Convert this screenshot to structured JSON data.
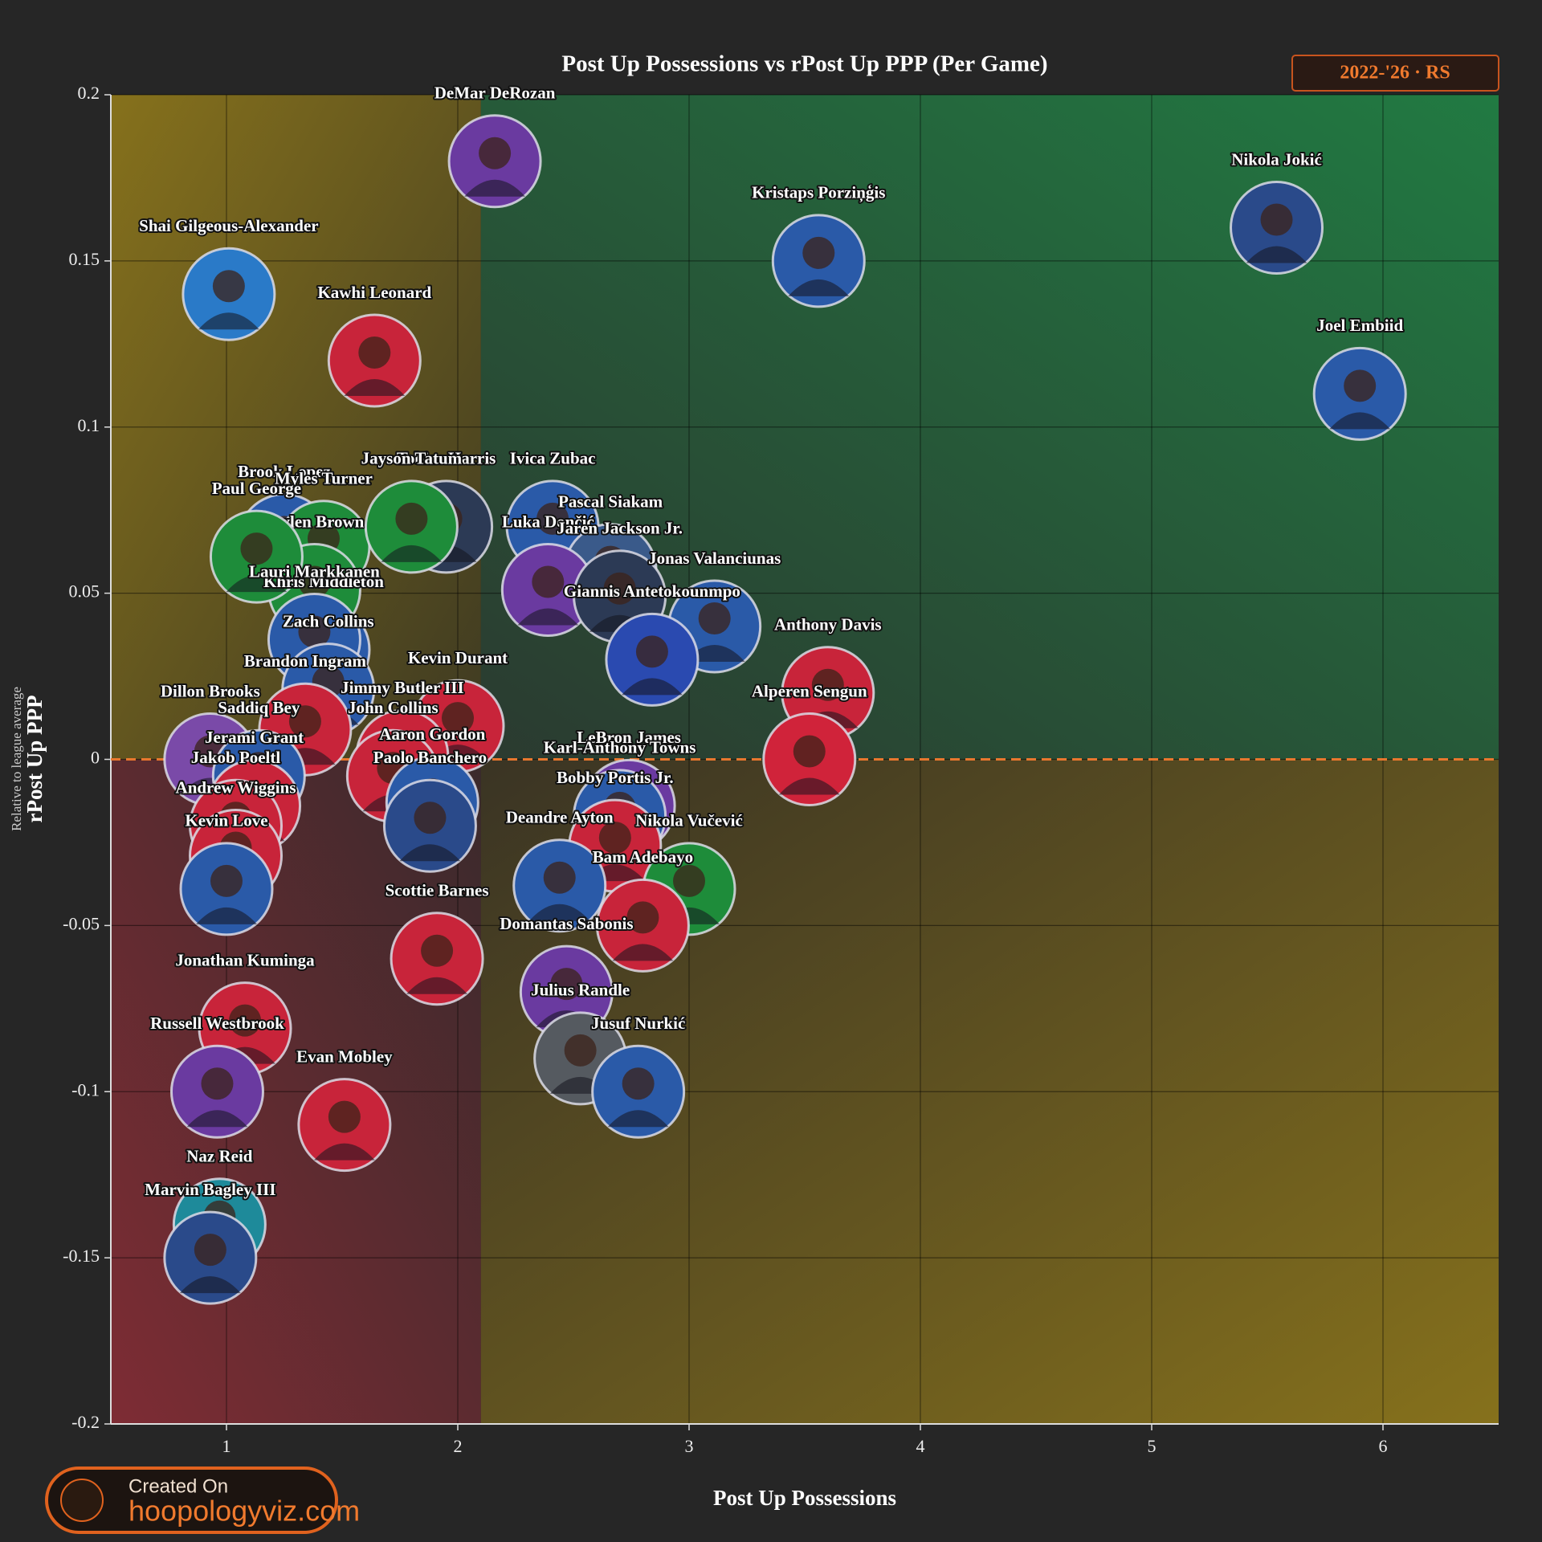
{
  "chart_data": {
    "type": "scatter",
    "title": "Post Up Possessions vs rPost Up PPP (Per Game)",
    "badge": "2022-'26 · RS",
    "x_label": "Post Up Possessions",
    "y_label": "rPost Up PPP",
    "y_sublabel": "Relative to league average",
    "footer_small": "Created On",
    "footer_big": "hoopologyviz.com",
    "xlim": [
      0.5,
      6.5
    ],
    "ylim": [
      -0.2,
      0.2
    ],
    "xticks": [
      1,
      2,
      3,
      4,
      5,
      6
    ],
    "yticks": [
      0.2,
      0.15,
      0.1,
      0.05,
      0,
      -0.05,
      -0.1,
      -0.15,
      -0.2
    ],
    "grid": true,
    "x_reference": 2.1,
    "y_reference": 0,
    "reference_color": "#e8772e",
    "points": [
      {
        "label": "Brook Lopez",
        "x": 1.25,
        "y": 0.066,
        "color": "#2a5aa8"
      },
      {
        "label": "Tobias Harris",
        "x": 1.95,
        "y": 0.07,
        "color": "#2c3a55"
      },
      {
        "label": "Myles Turner",
        "x": 1.42,
        "y": 0.064,
        "color": "#1e8c3a"
      },
      {
        "label": "Jaylen Brown",
        "x": 1.38,
        "y": 0.051,
        "color": "#1e8c3a"
      },
      {
        "label": "Paul George",
        "x": 1.13,
        "y": 0.061,
        "color": "#1e8c3a"
      },
      {
        "label": "Jayson Tatum",
        "x": 1.8,
        "y": 0.07,
        "color": "#1e8c3a"
      },
      {
        "label": "Ivica Zubac",
        "x": 2.41,
        "y": 0.07,
        "color": "#2a5aa8"
      },
      {
        "label": "Pascal Siakam",
        "x": 2.66,
        "y": 0.057,
        "color": "#3a5a8a"
      },
      {
        "label": "Luka Dončić",
        "x": 2.39,
        "y": 0.051,
        "color": "#6a3aa0"
      },
      {
        "label": "Jaren Jackson Jr.",
        "x": 2.7,
        "y": 0.049,
        "color": "#2c3a55"
      },
      {
        "label": "Jonas Valanciunas",
        "x": 3.11,
        "y": 0.04,
        "color": "#2a5aa8"
      },
      {
        "label": "Giannis Antetokounmpo",
        "x": 2.84,
        "y": 0.03,
        "color": "#2a4ab0"
      },
      {
        "label": "Khris Middleton",
        "x": 1.42,
        "y": 0.033,
        "color": "#2a5aa8"
      },
      {
        "label": "Lauri Markkanen",
        "x": 1.38,
        "y": 0.036,
        "color": "#2a5aa8"
      },
      {
        "label": "Zach Collins",
        "x": 1.44,
        "y": 0.021,
        "color": "#2a5aa8"
      },
      {
        "label": "Brandon Ingram",
        "x": 1.34,
        "y": 0.009,
        "color": "#c8243a"
      },
      {
        "label": "Kevin Durant",
        "x": 2.0,
        "y": 0.01,
        "color": "#c8243a"
      },
      {
        "label": "Anthony Davis",
        "x": 3.6,
        "y": 0.02,
        "color": "#c8243a"
      },
      {
        "label": "Alperen Sengun",
        "x": 3.52,
        "y": 0.0,
        "color": "#d0233a"
      },
      {
        "label": "Dillon Brooks",
        "x": 0.93,
        "y": 0.0,
        "color": "#7a4aa8"
      },
      {
        "label": "Jimmy Butler III",
        "x": 1.76,
        "y": 0.001,
        "color": "#c8243a"
      },
      {
        "label": "Saddiq Bey",
        "x": 1.14,
        "y": -0.005,
        "color": "#2a5aa8"
      },
      {
        "label": "John Collins",
        "x": 1.72,
        "y": -0.005,
        "color": "#c8243a"
      },
      {
        "label": "Jerami Grant",
        "x": 1.12,
        "y": -0.014,
        "color": "#c8243a"
      },
      {
        "label": "Aaron Gordon",
        "x": 1.89,
        "y": -0.013,
        "color": "#2a5aa8"
      },
      {
        "label": "LeBron James",
        "x": 2.74,
        "y": -0.014,
        "color": "#6a3aa0"
      },
      {
        "label": "Jakob Poeltl",
        "x": 1.04,
        "y": -0.02,
        "color": "#c8243a"
      },
      {
        "label": "Karl-Anthony Towns",
        "x": 2.7,
        "y": -0.017,
        "color": "#2a5aa8"
      },
      {
        "label": "Andrew Wiggins",
        "x": 1.04,
        "y": -0.029,
        "color": "#c8243a"
      },
      {
        "label": "Paolo Banchero",
        "x": 1.88,
        "y": -0.02,
        "color": "#2a4a8a"
      },
      {
        "label": "Bobby Portis Jr.",
        "x": 2.68,
        "y": -0.026,
        "color": "#c8243a"
      },
      {
        "label": "Scottie Barnes",
        "x": 1.91,
        "y": -0.06,
        "color": "#c8243a"
      },
      {
        "label": "Nikola Vučević",
        "x": 3.0,
        "y": -0.039,
        "color": "#1e8c3a"
      },
      {
        "label": "Deandre Ayton",
        "x": 2.44,
        "y": -0.038,
        "color": "#2a5aa8"
      },
      {
        "label": "Kevin Love",
        "x": 1.0,
        "y": -0.039,
        "color": "#2a5aa8"
      },
      {
        "label": "Bam Adebayo",
        "x": 2.8,
        "y": -0.05,
        "color": "#c8243a"
      },
      {
        "label": "Domantas Sabonis",
        "x": 2.47,
        "y": -0.07,
        "color": "#6a3aa0"
      },
      {
        "label": "Jonathan Kuminga",
        "x": 1.08,
        "y": -0.081,
        "color": "#c8243a"
      },
      {
        "label": "Julius Randle",
        "x": 2.53,
        "y": -0.09,
        "color": "#555a60"
      },
      {
        "label": "Russell Westbrook",
        "x": 0.96,
        "y": -0.1,
        "color": "#6a3aa0"
      },
      {
        "label": "Jusuf Nurkić",
        "x": 2.78,
        "y": -0.1,
        "color": "#2a5aa8"
      },
      {
        "label": "Evan Mobley",
        "x": 1.51,
        "y": -0.11,
        "color": "#c8243a"
      },
      {
        "label": "Naz Reid",
        "x": 0.97,
        "y": -0.14,
        "color": "#1e8a9a"
      },
      {
        "label": "Marvin Bagley III",
        "x": 0.93,
        "y": -0.15,
        "color": "#2a4a8a"
      },
      {
        "label": "Kawhi Leonard",
        "x": 1.64,
        "y": 0.12,
        "color": "#c8243a"
      },
      {
        "label": "Shai Gilgeous-Alexander",
        "x": 1.01,
        "y": 0.14,
        "color": "#2a7ac8"
      },
      {
        "label": "DeMar DeRozan",
        "x": 2.16,
        "y": 0.18,
        "color": "#6a3aa0"
      },
      {
        "label": "Kristaps Porziņģis",
        "x": 3.56,
        "y": 0.15,
        "color": "#2a5aa8"
      },
      {
        "label": "Nikola Jokić",
        "x": 5.54,
        "y": 0.16,
        "color": "#2a4a8a"
      },
      {
        "label": "Joel Embiid",
        "x": 5.9,
        "y": 0.11,
        "color": "#2a5aa8"
      }
    ]
  }
}
